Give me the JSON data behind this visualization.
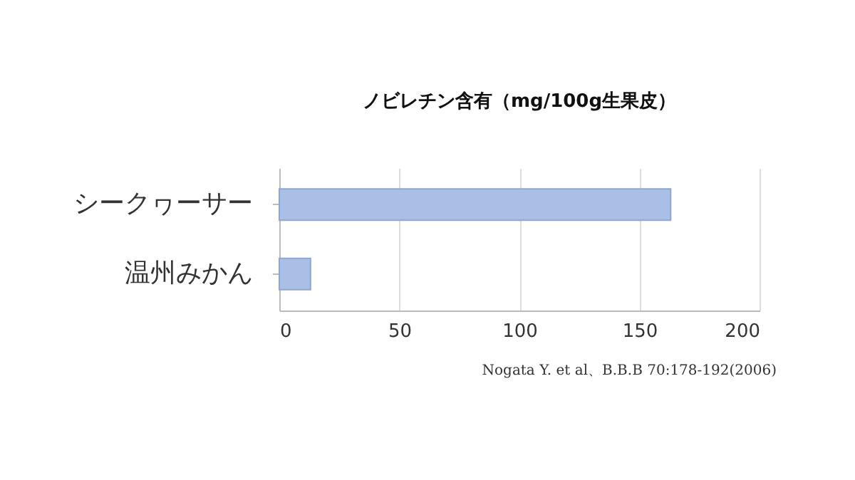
{
  "chart_data": {
    "type": "bar",
    "orientation": "horizontal",
    "title": "ノビレチン含有（mg/100g生果皮）",
    "categories": [
      "シークヮーサー",
      "温州みかん"
    ],
    "values": [
      163,
      13
    ],
    "color": "#aabfe6",
    "xlim": [
      0,
      200
    ],
    "xticks": [
      0,
      50,
      100,
      150,
      200
    ],
    "grid": "x",
    "annotations": [
      "Nogata Y. et al、B.B.B 70:178-192(2006)"
    ]
  }
}
